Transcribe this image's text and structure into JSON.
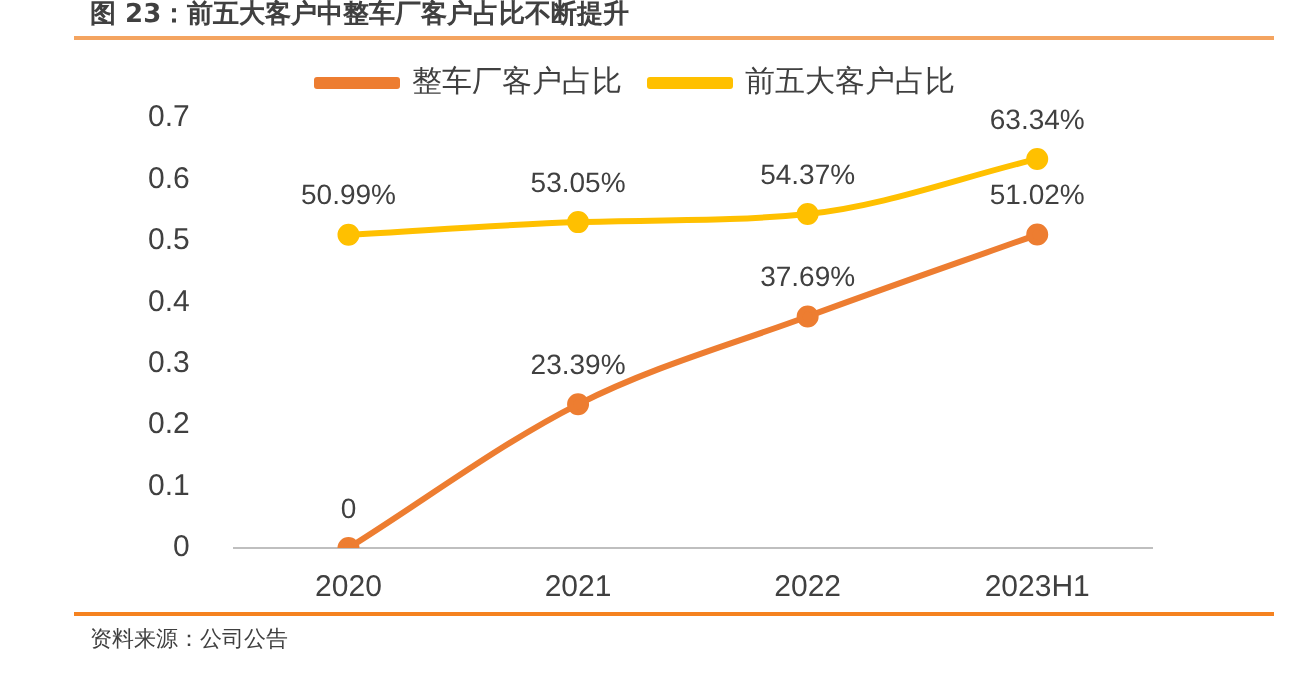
{
  "chart_data": {
    "type": "line",
    "title": "图 23：前五大客户中整车厂客户占比不断提升",
    "categories": [
      "2020",
      "2021",
      "2022",
      "2023H1"
    ],
    "series": [
      {
        "name": "整车厂客户占比",
        "color": "#ed7d31",
        "values": [
          0,
          0.2339,
          0.3769,
          0.5102
        ],
        "value_labels": [
          "0",
          "23.39%",
          "37.69%",
          "51.02%"
        ]
      },
      {
        "name": "前五大客户占比",
        "color": "#ffc000",
        "values": [
          0.5099,
          0.5305,
          0.5437,
          0.6334
        ],
        "value_labels": [
          "50.99%",
          "53.05%",
          "54.37%",
          "63.34%"
        ]
      }
    ],
    "ylim": [
      0,
      0.7
    ],
    "yticks": [
      0,
      0.1,
      0.2,
      0.3,
      0.4,
      0.5,
      0.6,
      0.7
    ],
    "grid": false,
    "legend": "top",
    "marker": "circle",
    "line_style": "solid",
    "annotations": [
      "资料来源：公司公告"
    ]
  }
}
